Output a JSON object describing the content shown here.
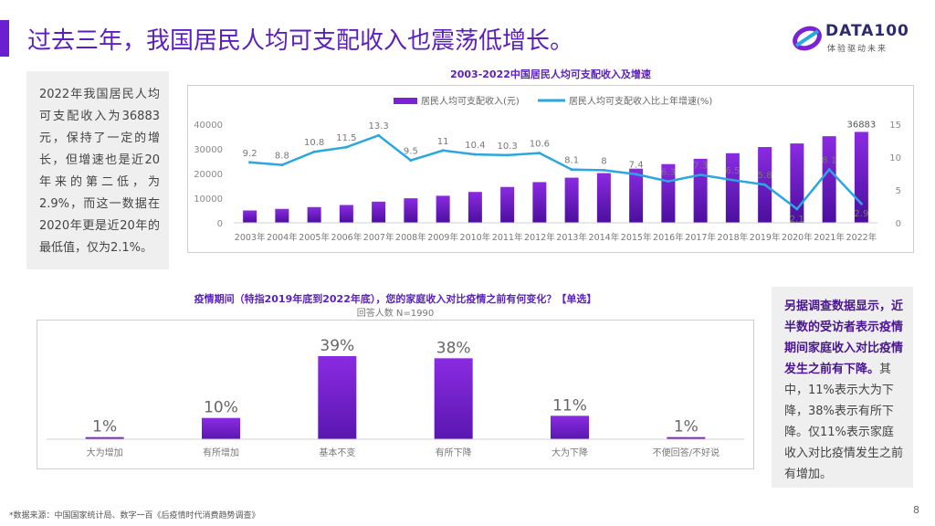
{
  "header": {
    "title": "过去三年，我国居民人均可支配收入也震荡低增长。",
    "logo_text": "DATA100",
    "logo_sub": "体验驱动未来"
  },
  "left_note": "2022年我国居民人均可支配收入为36883元，保持了一定的增长，但增速也是近20年来的第二低，为2.9%，而这一数据在2020年更是近20年的最低值，仅为2.1%。",
  "right_note": {
    "bold": "另据调查数据显示，近半数的受访者表示疫情期间家庭收入对比疫情发生之前有下降。",
    "normal": "其中，11%表示大为下降，38%表示有所下降。仅11%表示家庭收入对比疫情发生之前有增加。"
  },
  "source": "*数据来源：中国国家统计局、数字一百《后疫情时代消费趋势调查》",
  "page_number": "8",
  "colors": {
    "accent": "#6a1fd0",
    "bar": "#7b22d6",
    "line": "#2aa6e0"
  },
  "chart_data": [
    {
      "type": "bar+line",
      "title": "2003-2022中国居民人均可支配收入及增速",
      "categories": [
        "2003年",
        "2004年",
        "2005年",
        "2006年",
        "2007年",
        "2008年",
        "2009年",
        "2010年",
        "2011年",
        "2012年",
        "2013年",
        "2014年",
        "2015年",
        "2016年",
        "2017年",
        "2018年",
        "2019年",
        "2020年",
        "2021年",
        "2022年"
      ],
      "series": [
        {
          "name": "居民人均可支配收入(元)",
          "type": "bar",
          "axis": "left",
          "values": [
            5007,
            5661,
            6385,
            7229,
            8584,
            9957,
            10977,
            12520,
            14551,
            16510,
            18311,
            20167,
            21966,
            23821,
            25974,
            28228,
            30733,
            32189,
            35128,
            36883
          ]
        },
        {
          "name": "居民人均可支配收入比上年增速(%)",
          "type": "line",
          "axis": "right",
          "values": [
            9.2,
            8.8,
            10.8,
            11.5,
            13.3,
            9.5,
            11,
            10.4,
            10.3,
            10.6,
            8.1,
            8,
            7.4,
            6.3,
            7.3,
            6.5,
            5.8,
            2.1,
            8.1,
            2.9
          ]
        }
      ],
      "line_labels": [
        "9.2",
        "8.8",
        "10.8",
        "11.5",
        "13.3",
        "9.5",
        "11",
        "10.4",
        "10.3",
        "10.6",
        "8.1",
        "8",
        "7.4",
        "6.3",
        "7.3",
        "6.5",
        "5.8",
        "2.1",
        "8.1",
        "2.9"
      ],
      "bar_value_label": "36883",
      "y_left": {
        "range": [
          0,
          40000
        ],
        "ticks": [
          "0",
          "10000",
          "20000",
          "30000",
          "40000"
        ]
      },
      "y_right": {
        "range": [
          0,
          15
        ],
        "ticks": [
          "0",
          "5",
          "10",
          "15"
        ]
      },
      "legend": "top"
    },
    {
      "type": "bar",
      "title": "疫情期间（特指2019年底到2022年底），您的家庭收入对比疫情之前有何变化？【单选】",
      "subtitle": "回答人数 N=1990",
      "categories": [
        "大为增加",
        "有所增加",
        "基本不变",
        "有所下降",
        "大为下降",
        "不便回答/不好说"
      ],
      "values": [
        1,
        10,
        39,
        38,
        11,
        1
      ],
      "labels": [
        "1%",
        "10%",
        "39%",
        "38%",
        "11%",
        "1%"
      ],
      "ylim": [
        0,
        45
      ]
    }
  ]
}
